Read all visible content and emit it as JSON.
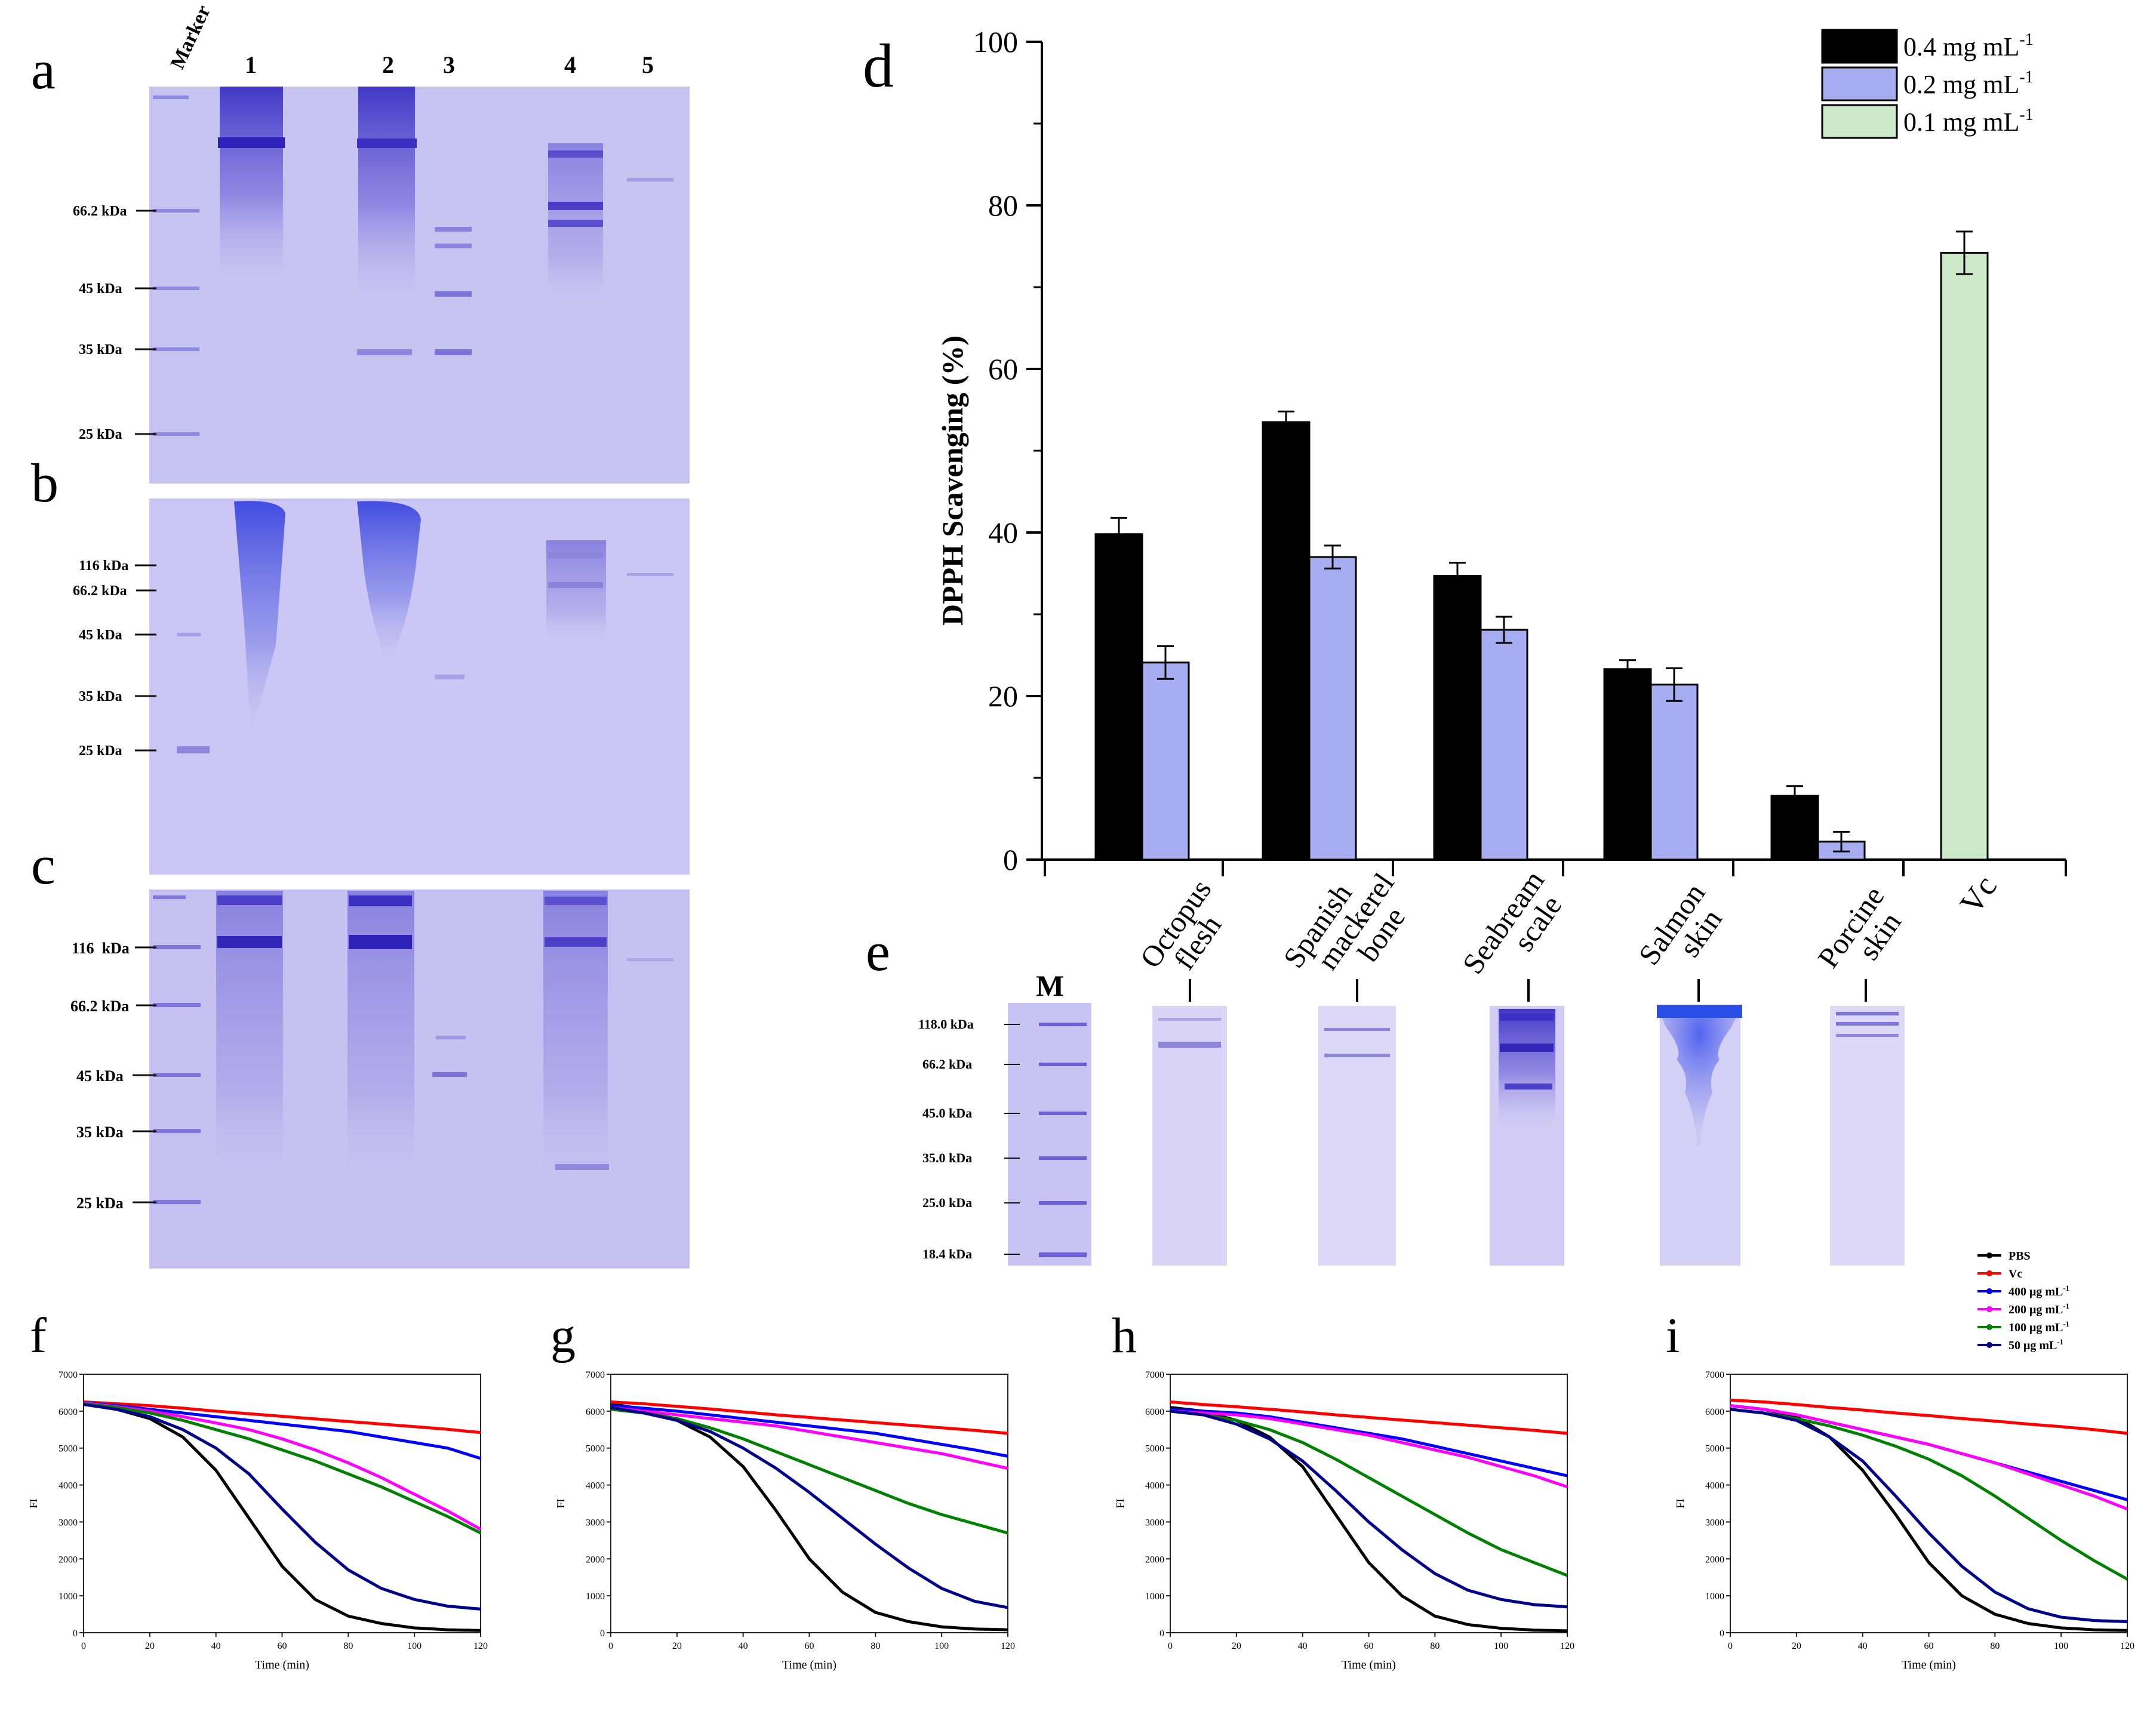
{
  "panel_letters": {
    "a": "a",
    "b": "b",
    "c": "c",
    "d": "d",
    "e": "e",
    "f": "f",
    "g": "g",
    "h": "h",
    "i": "i"
  },
  "gels_abc": {
    "marker_label": "Marker",
    "lane_numbers": [
      "1",
      "2",
      "3",
      "4",
      "5"
    ],
    "gel_a_markers": [
      "66.2 kDa",
      "45 kDa",
      "35 kDa",
      "25 kDa"
    ],
    "gel_b_markers": [
      "116 kDa",
      "66.2 kDa",
      "45 kDa",
      "35 kDa",
      "25 kDa"
    ],
    "gel_c_markers": [
      "116  kDa",
      "66.2 kDa",
      "45 kDa",
      "35 kDa",
      "25 kDa"
    ]
  },
  "gel_e": {
    "marker_lane": "M",
    "markers": [
      "118.0 kDa",
      "66.2 kDa",
      "45.0 kDa",
      "35.0 kDa",
      "25.0 kDa",
      "18.4 kDa"
    ],
    "lanes": [
      {
        "line1": "Octopus",
        "line2": "flesh"
      },
      {
        "line1": "Spanish",
        "line2": "mackerel",
        "line3": "bone"
      },
      {
        "line1": "Seabream",
        "line2": "scale"
      },
      {
        "line1": "Salmon",
        "line2": "skin"
      },
      {
        "line1": "Porcine",
        "line2": "skin"
      }
    ]
  },
  "colors": {
    "gel_bg": "#c6c3f2",
    "gel_band": "#3d33c8",
    "salmon_band": "#2250e8",
    "black_bar": "#000000",
    "blue_bar": "#a6acf0",
    "green_bar": "#cbe8c9",
    "pbs": "#000000",
    "vc": "#ff0000",
    "c400": "#0000ff",
    "c200": "#ff00ff",
    "c100": "#008000",
    "c50": "#00008b"
  },
  "chart_data": [
    {
      "type": "bar",
      "panel": "d",
      "title": "",
      "ylabel": "DPPH Scavenging (%)",
      "xlabel": "",
      "ylim": [
        0,
        100
      ],
      "yticks": [
        "0",
        "20",
        "40",
        "60",
        "80",
        "100"
      ],
      "categories": [
        "Octopus flesh",
        "Spanish mackerel bone",
        "Seabream scale",
        "Salmon skin",
        "Porcine skin",
        "Vc"
      ],
      "legend": {
        "placement": "top-right",
        "items": [
          {
            "label": "0.4 mg mL",
            "sup": "-1"
          },
          {
            "label": "0.2 mg mL",
            "sup": "-1"
          },
          {
            "label": "0.1 mg mL",
            "sup": "-1"
          }
        ]
      },
      "series": [
        {
          "name": "0.4 mg mL-1",
          "values": [
            39.8,
            53.5,
            34.7,
            23.3,
            7.8,
            null
          ],
          "errors": [
            2.0,
            1.3,
            1.6,
            1.1,
            1.2,
            null
          ]
        },
        {
          "name": "0.2 mg mL-1",
          "values": [
            24.1,
            37.0,
            28.1,
            21.4,
            2.2,
            null
          ],
          "errors": [
            2.0,
            1.4,
            1.6,
            2.0,
            1.2,
            null
          ]
        },
        {
          "name": "0.1 mg mL-1",
          "values": [
            null,
            null,
            null,
            null,
            null,
            74.2
          ],
          "errors": [
            null,
            null,
            null,
            null,
            null,
            2.6
          ]
        }
      ]
    },
    {
      "type": "line",
      "panels": [
        "f",
        "g",
        "h",
        "i"
      ],
      "xlabel": "Time (min)",
      "ylabel": "FI",
      "xlim": [
        0,
        120
      ],
      "ylim": [
        0,
        7000
      ],
      "xticks": [
        "0",
        "20",
        "40",
        "60",
        "80",
        "100",
        "120"
      ],
      "yticks": [
        "0",
        "1000",
        "2000",
        "3000",
        "4000",
        "5000",
        "6000",
        "7000"
      ],
      "legend": {
        "placement": "top-right of panel i",
        "items": [
          {
            "label": "PBS",
            "sup": ""
          },
          {
            "label": "Vc",
            "sup": ""
          },
          {
            "label": "400 μg mL",
            "sup": "-1"
          },
          {
            "label": "200 μg mL",
            "sup": "-1"
          },
          {
            "label": "100 μg mL",
            "sup": "-1"
          },
          {
            "label": "50  μg mL",
            "sup": "-1"
          }
        ]
      },
      "x": [
        0,
        10,
        20,
        30,
        40,
        50,
        60,
        70,
        80,
        90,
        100,
        110,
        120
      ],
      "panels_data": {
        "f": {
          "PBS": [
            6200,
            6050,
            5800,
            5300,
            4400,
            3100,
            1800,
            900,
            450,
            250,
            130,
            80,
            60
          ],
          "Vc": [
            6250,
            6200,
            6150,
            6080,
            6000,
            5930,
            5860,
            5790,
            5720,
            5650,
            5580,
            5510,
            5420
          ],
          "400": [
            6230,
            6150,
            6050,
            5950,
            5850,
            5750,
            5650,
            5550,
            5450,
            5300,
            5150,
            5000,
            4720
          ],
          "200": [
            6220,
            6120,
            6000,
            5850,
            5680,
            5500,
            5250,
            4950,
            4600,
            4200,
            3750,
            3300,
            2800
          ],
          "100": [
            6200,
            6100,
            5950,
            5750,
            5500,
            5250,
            4950,
            4650,
            4300,
            3950,
            3550,
            3150,
            2700
          ],
          "50": [
            6180,
            6050,
            5850,
            5500,
            5000,
            4300,
            3350,
            2450,
            1700,
            1200,
            900,
            720,
            640
          ]
        },
        "g": {
          "PBS": [
            6200,
            6050,
            5750,
            5300,
            4500,
            3300,
            2000,
            1100,
            550,
            300,
            160,
            100,
            80
          ],
          "Vc": [
            6250,
            6200,
            6130,
            6060,
            5980,
            5900,
            5830,
            5760,
            5690,
            5620,
            5550,
            5480,
            5400
          ],
          "400": [
            6150,
            6080,
            6000,
            5900,
            5800,
            5700,
            5600,
            5500,
            5400,
            5250,
            5100,
            4950,
            4780
          ],
          "200": [
            6100,
            6000,
            5900,
            5800,
            5700,
            5600,
            5450,
            5300,
            5150,
            5000,
            4850,
            4650,
            4450
          ],
          "100": [
            6050,
            5950,
            5800,
            5550,
            5250,
            4900,
            4550,
            4200,
            3850,
            3500,
            3200,
            2950,
            2700
          ],
          "50": [
            6100,
            5950,
            5750,
            5450,
            5000,
            4450,
            3800,
            3100,
            2400,
            1750,
            1200,
            850,
            680
          ]
        },
        "h": {
          "PBS": [
            6100,
            6000,
            5750,
            5300,
            4500,
            3200,
            1900,
            1000,
            450,
            220,
            120,
            70,
            50
          ],
          "Vc": [
            6250,
            6180,
            6120,
            6050,
            5980,
            5900,
            5830,
            5760,
            5690,
            5620,
            5550,
            5480,
            5400
          ],
          "400": [
            6050,
            6000,
            5950,
            5850,
            5700,
            5550,
            5400,
            5250,
            5050,
            4850,
            4650,
            4450,
            4250
          ],
          "200": [
            6000,
            5950,
            5900,
            5800,
            5650,
            5500,
            5350,
            5150,
            4950,
            4750,
            4500,
            4250,
            3950
          ],
          "100": [
            6000,
            5900,
            5750,
            5500,
            5150,
            4700,
            4200,
            3700,
            3200,
            2700,
            2250,
            1900,
            1550
          ],
          "50": [
            6000,
            5900,
            5650,
            5250,
            4650,
            3850,
            3000,
            2250,
            1600,
            1150,
            900,
            760,
            700
          ]
        },
        "i": {
          "PBS": [
            6150,
            6050,
            5850,
            5300,
            4400,
            3200,
            1900,
            1000,
            500,
            250,
            130,
            80,
            60
          ],
          "Vc": [
            6300,
            6250,
            6180,
            6100,
            6030,
            5950,
            5880,
            5800,
            5730,
            5650,
            5580,
            5500,
            5400
          ],
          "400": [
            6150,
            6050,
            5900,
            5700,
            5500,
            5300,
            5100,
            4850,
            4600,
            4350,
            4100,
            3850,
            3600
          ],
          "200": [
            6150,
            6050,
            5900,
            5700,
            5500,
            5300,
            5100,
            4850,
            4600,
            4300,
            4000,
            3700,
            3350
          ],
          "100": [
            6050,
            5950,
            5800,
            5600,
            5350,
            5050,
            4700,
            4250,
            3700,
            3100,
            2500,
            1950,
            1450
          ],
          "50": [
            6050,
            5950,
            5750,
            5300,
            4650,
            3700,
            2700,
            1800,
            1100,
            650,
            420,
            330,
            300
          ]
        }
      }
    }
  ]
}
